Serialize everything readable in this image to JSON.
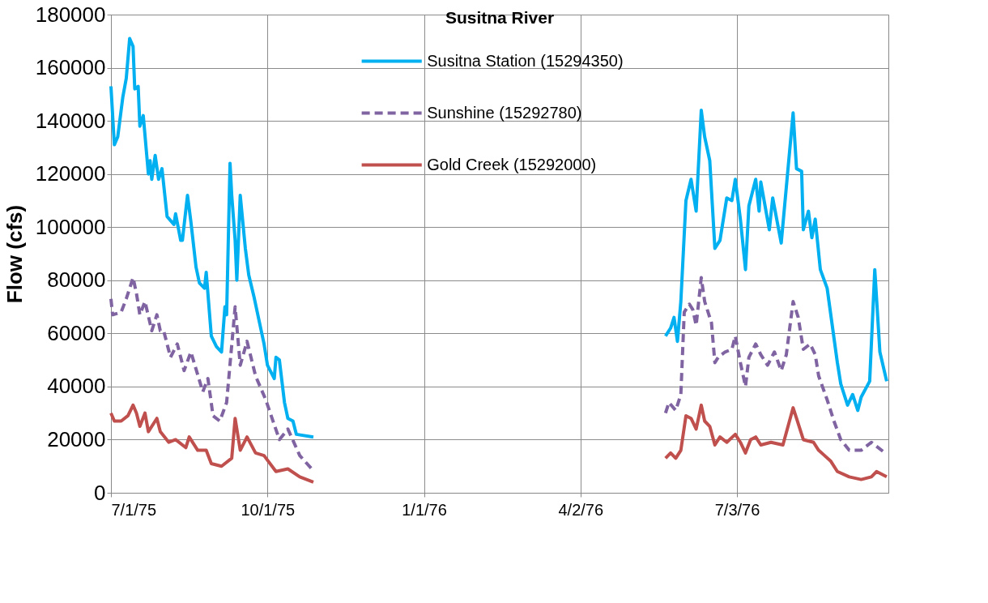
{
  "chart_data": {
    "type": "line",
    "title": "Susitna River",
    "ylabel": "Flow (cfs)",
    "xlim": [
      "1975-07-01",
      "1976-09-30"
    ],
    "xticks": [
      {
        "value": "1975-07-01",
        "label": "7/1/75"
      },
      {
        "value": "1975-10-01",
        "label": "10/1/75"
      },
      {
        "value": "1976-01-01",
        "label": "1/1/76"
      },
      {
        "value": "1976-04-02",
        "label": "4/2/76"
      },
      {
        "value": "1976-07-03",
        "label": "7/3/76"
      }
    ],
    "ylim": [
      0,
      180000
    ],
    "yticks": [
      0,
      20000,
      40000,
      60000,
      80000,
      100000,
      120000,
      140000,
      160000,
      180000
    ],
    "grid": true,
    "legend": "top",
    "series": [
      {
        "name": "Susitna Station (15294350)",
        "color": "#00b0f0",
        "line_style": "solid",
        "x": [
          "1975-07-01",
          "1975-07-03",
          "1975-07-05",
          "1975-07-08",
          "1975-07-10",
          "1975-07-12",
          "1975-07-14",
          "1975-07-15",
          "1975-07-17",
          "1975-07-18",
          "1975-07-20",
          "1975-07-23",
          "1975-07-24",
          "1975-07-25",
          "1975-07-27",
          "1975-07-29",
          "1975-07-31",
          "1975-08-03",
          "1975-08-07",
          "1975-08-08",
          "1975-08-11",
          "1975-08-12",
          "1975-08-15",
          "1975-08-17",
          "1975-08-20",
          "1975-08-22",
          "1975-08-25",
          "1975-08-26",
          "1975-08-29",
          "1975-09-01",
          "1975-09-04",
          "1975-09-06",
          "1975-09-07",
          "1975-09-09",
          "1975-09-10",
          "1975-09-12",
          "1975-09-13",
          "1975-09-15",
          "1975-09-18",
          "1975-09-20",
          "1975-09-23",
          "1975-09-26",
          "1975-09-29",
          "1975-10-01",
          "1975-10-05",
          "1975-10-06",
          "1975-10-08",
          "1975-10-11",
          "1975-10-13",
          "1975-10-16",
          "1975-10-18",
          "1975-10-28",
          "1976-01-01",
          "1976-05-22",
          "1976-05-25",
          "1976-05-27",
          "1976-05-29",
          "1976-05-31",
          "1976-06-03",
          "1976-06-06",
          "1976-06-09",
          "1976-06-12",
          "1976-06-14",
          "1976-06-17",
          "1976-06-20",
          "1976-06-23",
          "1976-06-27",
          "1976-06-30",
          "1976-07-02",
          "1976-07-05",
          "1976-07-08",
          "1976-07-10",
          "1976-07-14",
          "1976-07-16",
          "1976-07-17",
          "1976-07-22",
          "1976-07-24",
          "1976-07-29",
          "1976-08-05",
          "1976-08-07",
          "1976-08-10",
          "1976-08-11",
          "1976-08-14",
          "1976-08-16",
          "1976-08-18",
          "1976-08-21",
          "1976-08-25",
          "1976-08-31",
          "1976-09-02",
          "1976-09-06",
          "1976-09-09",
          "1976-09-12",
          "1976-09-14",
          "1976-09-19",
          "1976-09-22",
          "1976-09-25",
          "1976-09-29"
        ],
        "values": [
          153000,
          131000,
          134000,
          149000,
          156000,
          171000,
          168000,
          152000,
          153000,
          138000,
          142000,
          120000,
          125000,
          118000,
          127000,
          118000,
          122000,
          104000,
          101000,
          105000,
          95000,
          95000,
          112000,
          102000,
          85000,
          79000,
          77000,
          83000,
          59000,
          55000,
          53000,
          70000,
          67000,
          124000,
          112000,
          95000,
          80000,
          112000,
          92000,
          82000,
          74000,
          65000,
          56000,
          48000,
          43000,
          51000,
          50000,
          34000,
          28000,
          27000,
          22000,
          21000,
          null,
          59000,
          62000,
          66000,
          57000,
          72000,
          110000,
          118000,
          106000,
          144000,
          134000,
          125000,
          92000,
          95000,
          111000,
          110000,
          118000,
          103000,
          84000,
          108000,
          118000,
          106000,
          117000,
          99000,
          111000,
          94000,
          143000,
          122000,
          121000,
          99000,
          106000,
          96000,
          103000,
          84000,
          77000,
          49000,
          41000,
          33000,
          37000,
          31000,
          36000,
          42000,
          84000,
          53000,
          42000
        ]
      },
      {
        "name": "Sunshine (15292780)",
        "color": "#8064a2",
        "line_style": "dashed",
        "x": [
          "1975-07-01",
          "1975-07-02",
          "1975-07-07",
          "1975-07-10",
          "1975-07-14",
          "1975-07-16",
          "1975-07-18",
          "1975-07-21",
          "1975-07-25",
          "1975-07-28",
          "1975-07-30",
          "1975-08-01",
          "1975-08-05",
          "1975-08-09",
          "1975-08-13",
          "1975-08-17",
          "1975-08-24",
          "1975-08-27",
          "1975-08-30",
          "1975-09-03",
          "1975-09-07",
          "1975-09-12",
          "1975-09-15",
          "1975-09-19",
          "1975-09-24",
          "1975-09-30",
          "1975-10-08",
          "1975-10-13",
          "1975-10-20",
          "1975-10-27",
          "1976-01-01",
          "1976-05-22",
          "1976-05-24",
          "1976-05-28",
          "1976-05-31",
          "1976-06-02",
          "1976-06-05",
          "1976-06-07",
          "1976-06-09",
          "1976-06-12",
          "1976-06-14",
          "1976-06-18",
          "1976-06-20",
          "1976-06-22",
          "1976-06-26",
          "1976-06-30",
          "1976-07-02",
          "1976-07-05",
          "1976-07-08",
          "1976-07-10",
          "1976-07-14",
          "1976-07-17",
          "1976-07-21",
          "1976-07-25",
          "1976-07-29",
          "1976-08-01",
          "1976-08-05",
          "1976-08-08",
          "1976-08-11",
          "1976-08-15",
          "1976-08-18",
          "1976-08-20",
          "1976-08-25",
          "1976-08-29",
          "1976-09-02",
          "1976-09-07",
          "1976-09-14",
          "1976-09-20",
          "1976-09-28"
        ],
        "values": [
          73000,
          67000,
          68000,
          73000,
          81000,
          75000,
          67000,
          72000,
          61000,
          67000,
          61000,
          61000,
          51000,
          56000,
          46000,
          53000,
          38000,
          43000,
          29000,
          27000,
          34000,
          70000,
          48000,
          57000,
          44000,
          35000,
          20000,
          24000,
          14000,
          9000,
          null,
          30000,
          34000,
          31000,
          37000,
          68000,
          71000,
          69000,
          63000,
          81000,
          72000,
          64000,
          49000,
          51000,
          53000,
          54000,
          59000,
          49000,
          40000,
          51000,
          56000,
          52000,
          48000,
          53000,
          46000,
          52000,
          72000,
          66000,
          54000,
          56000,
          52000,
          44000,
          35000,
          27000,
          20000,
          16000,
          16000,
          19000,
          15000
        ]
      },
      {
        "name": "Gold Creek (15292000)",
        "color": "#c0504d",
        "line_style": "solid",
        "x": [
          "1975-07-01",
          "1975-07-03",
          "1975-07-07",
          "1975-07-11",
          "1975-07-14",
          "1975-07-16",
          "1975-07-18",
          "1975-07-21",
          "1975-07-23",
          "1975-07-28",
          "1975-07-30",
          "1975-08-04",
          "1975-08-08",
          "1975-08-14",
          "1975-08-16",
          "1975-08-21",
          "1975-08-26",
          "1975-08-29",
          "1975-09-04",
          "1975-09-10",
          "1975-09-12",
          "1975-09-15",
          "1975-09-19",
          "1975-09-24",
          "1975-09-29",
          "1975-10-06",
          "1975-10-13",
          "1975-10-20",
          "1975-10-28",
          "1976-01-01",
          "1976-05-22",
          "1976-05-25",
          "1976-05-28",
          "1976-05-31",
          "1976-06-03",
          "1976-06-06",
          "1976-06-09",
          "1976-06-12",
          "1976-06-14",
          "1976-06-17",
          "1976-06-20",
          "1976-06-23",
          "1976-06-27",
          "1976-07-02",
          "1976-07-05",
          "1976-07-08",
          "1976-07-11",
          "1976-07-14",
          "1976-07-17",
          "1976-07-23",
          "1976-07-30",
          "1976-08-05",
          "1976-08-07",
          "1976-08-11",
          "1976-08-17",
          "1976-08-20",
          "1976-08-27",
          "1976-08-31",
          "1976-09-07",
          "1976-09-14",
          "1976-09-20",
          "1976-09-23",
          "1976-09-29"
        ],
        "values": [
          30000,
          27000,
          27000,
          29000,
          33000,
          30000,
          25000,
          30000,
          23000,
          28000,
          23000,
          19000,
          20000,
          17000,
          21000,
          16000,
          16000,
          11000,
          10000,
          13000,
          28000,
          16000,
          21000,
          15000,
          14000,
          8000,
          9000,
          6000,
          4000,
          null,
          13000,
          15000,
          13000,
          16000,
          29000,
          28000,
          24000,
          33000,
          27000,
          25000,
          18000,
          21000,
          19000,
          22000,
          19000,
          15000,
          20000,
          21000,
          18000,
          19000,
          18000,
          32000,
          28000,
          20000,
          19000,
          16000,
          12000,
          8000,
          6000,
          5000,
          6000,
          8000,
          6000
        ]
      }
    ]
  }
}
